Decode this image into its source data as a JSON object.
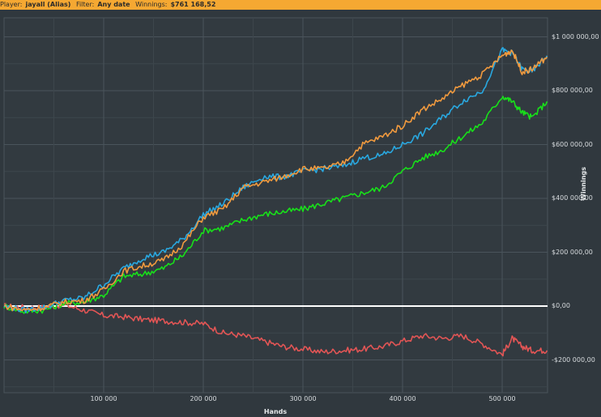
{
  "header": {
    "player_label": "Player:",
    "player_value": "jayall (Alias)",
    "filter_label": "Filter:",
    "filter_value": "Any date",
    "winnings_label": "Winnings:",
    "winnings_value": "$761 168,52"
  },
  "colors": {
    "header_bg": "#f5a832",
    "background": "#30383e",
    "grid": "#454e55",
    "zero_line": "#ffffff",
    "series_orange": "#f19a3e",
    "series_blue": "#29a8e0",
    "series_green": "#18e01a",
    "series_red": "#e25555"
  },
  "chart_data": {
    "type": "line",
    "title": "",
    "xlabel": "Hands",
    "ylabel": "Winnings",
    "xlim": [
      0,
      545000
    ],
    "ylim": [
      -270000,
      1100000
    ],
    "grid": true,
    "legend": "none",
    "x_ticks": [
      "100 000",
      "200 000",
      "300 000",
      "400 000",
      "500 000"
    ],
    "x_tick_values": [
      100000,
      200000,
      300000,
      400000,
      500000
    ],
    "y_ticks": [
      "$1 000 000,00",
      "$800 000,00",
      "$600 000,00",
      "$400 000,00",
      "$200 000,00",
      "$0,00",
      "-$200 000,00"
    ],
    "y_tick_values": [
      1000000,
      800000,
      600000,
      400000,
      200000,
      0,
      -200000
    ],
    "x": [
      0,
      20000,
      40000,
      60000,
      80000,
      100000,
      120000,
      140000,
      160000,
      180000,
      200000,
      220000,
      240000,
      260000,
      280000,
      300000,
      320000,
      340000,
      360000,
      380000,
      400000,
      420000,
      440000,
      460000,
      480000,
      500000,
      510000,
      520000,
      530000,
      545000
    ],
    "series": [
      {
        "name": "orange",
        "color": "#f19a3e",
        "values": [
          0,
          -15000,
          -5000,
          15000,
          20000,
          60000,
          130000,
          150000,
          170000,
          230000,
          330000,
          360000,
          440000,
          460000,
          480000,
          510000,
          510000,
          530000,
          600000,
          630000,
          670000,
          730000,
          770000,
          820000,
          860000,
          930000,
          950000,
          870000,
          880000,
          925000
        ]
      },
      {
        "name": "blue",
        "color": "#29a8e0",
        "values": [
          0,
          -15000,
          -5000,
          20000,
          30000,
          80000,
          140000,
          180000,
          200000,
          250000,
          340000,
          380000,
          440000,
          480000,
          480000,
          500000,
          510000,
          520000,
          550000,
          560000,
          600000,
          640000,
          700000,
          760000,
          800000,
          950000,
          940000,
          880000,
          870000,
          930000
        ]
      },
      {
        "name": "green",
        "color": "#18e01a",
        "values": [
          0,
          -20000,
          -15000,
          10000,
          15000,
          40000,
          110000,
          120000,
          140000,
          190000,
          280000,
          290000,
          320000,
          340000,
          350000,
          360000,
          380000,
          400000,
          420000,
          440000,
          500000,
          550000,
          580000,
          630000,
          680000,
          780000,
          760000,
          720000,
          700000,
          760000
        ]
      },
      {
        "name": "red",
        "color": "#e25555",
        "values": [
          0,
          -5000,
          -5000,
          5000,
          -15000,
          -35000,
          -40000,
          -50000,
          -55000,
          -60000,
          -65000,
          -100000,
          -110000,
          -130000,
          -150000,
          -160000,
          -170000,
          -165000,
          -160000,
          -150000,
          -130000,
          -110000,
          -120000,
          -110000,
          -140000,
          -180000,
          -120000,
          -150000,
          -165000,
          -165000
        ]
      }
    ],
    "zero_line": true
  }
}
